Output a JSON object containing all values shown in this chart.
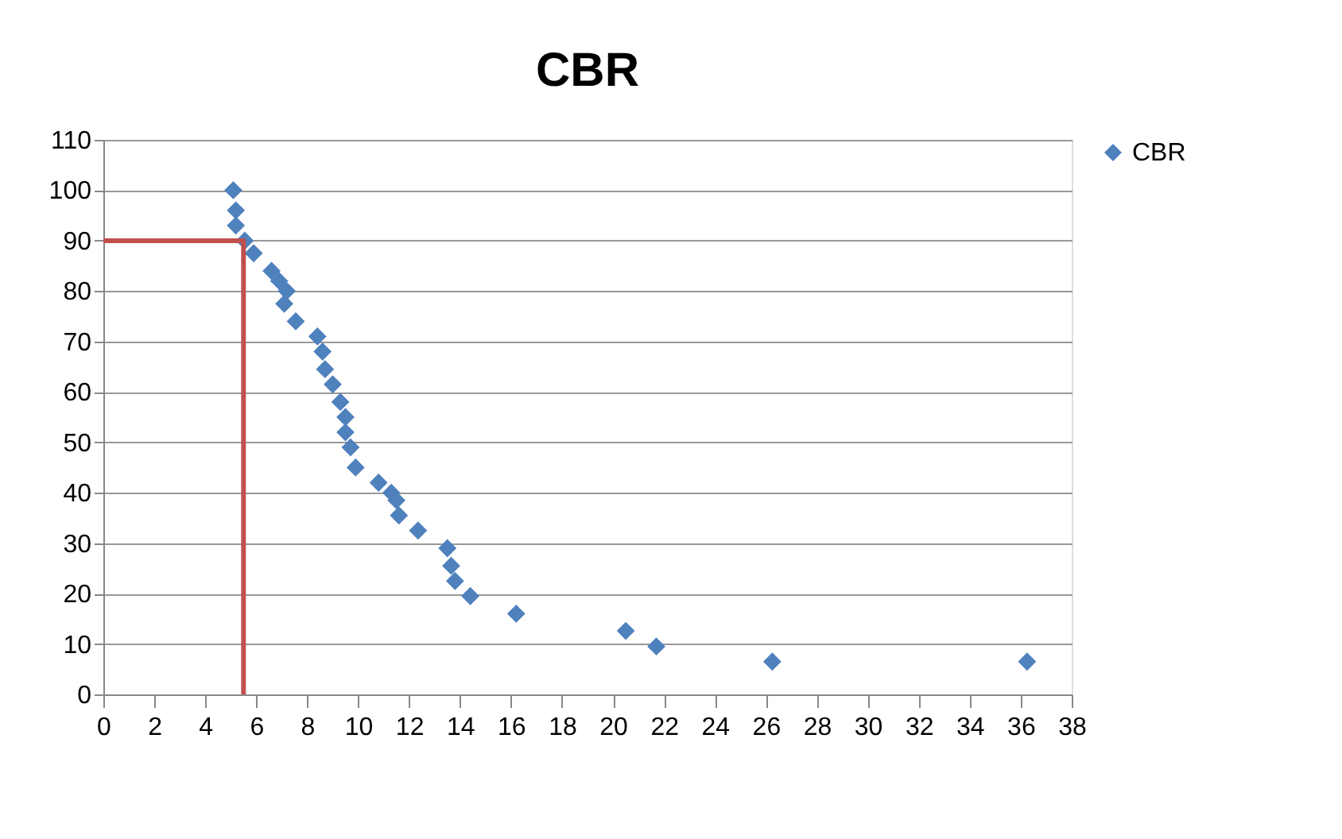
{
  "chart_data": {
    "type": "scatter",
    "title": "CBR",
    "xlim": [
      0,
      38
    ],
    "xticks": [
      0,
      2,
      4,
      6,
      8,
      10,
      12,
      14,
      16,
      18,
      20,
      22,
      24,
      26,
      28,
      30,
      32,
      34,
      36,
      38
    ],
    "ylim": [
      0,
      110
    ],
    "yticks": [
      0,
      10,
      20,
      30,
      40,
      50,
      60,
      70,
      80,
      90,
      100,
      110
    ],
    "grid": "y",
    "legend": "right",
    "marker": "diamond",
    "series": [
      {
        "name": "CBR",
        "color": "#4f81bd",
        "x": [
          5.1,
          5.2,
          5.2,
          5.55,
          5.9,
          6.6,
          6.9,
          7.2,
          7.1,
          7.55,
          8.4,
          8.6,
          8.7,
          9.0,
          9.3,
          9.5,
          9.5,
          9.7,
          9.9,
          10.8,
          11.3,
          11.5,
          11.6,
          12.35,
          13.5,
          13.65,
          13.8,
          14.4,
          16.2,
          20.5,
          21.7,
          26.25,
          36.25
        ],
        "values": [
          100,
          96,
          93,
          90,
          87.5,
          84,
          82,
          80,
          77.5,
          74,
          71,
          68,
          64.5,
          61.5,
          58,
          55,
          52,
          49,
          45,
          42,
          40,
          38.5,
          35.5,
          32.5,
          29,
          25.5,
          22.5,
          19.5,
          16,
          12.6,
          9.5,
          6.5,
          6.5
        ]
      },
      {
        "type": "line",
        "color": "#c0504d",
        "marker": "none",
        "line_style": "solid",
        "x": [
          0,
          5.5,
          5.5
        ],
        "values": [
          90,
          90,
          0
        ]
      }
    ]
  }
}
